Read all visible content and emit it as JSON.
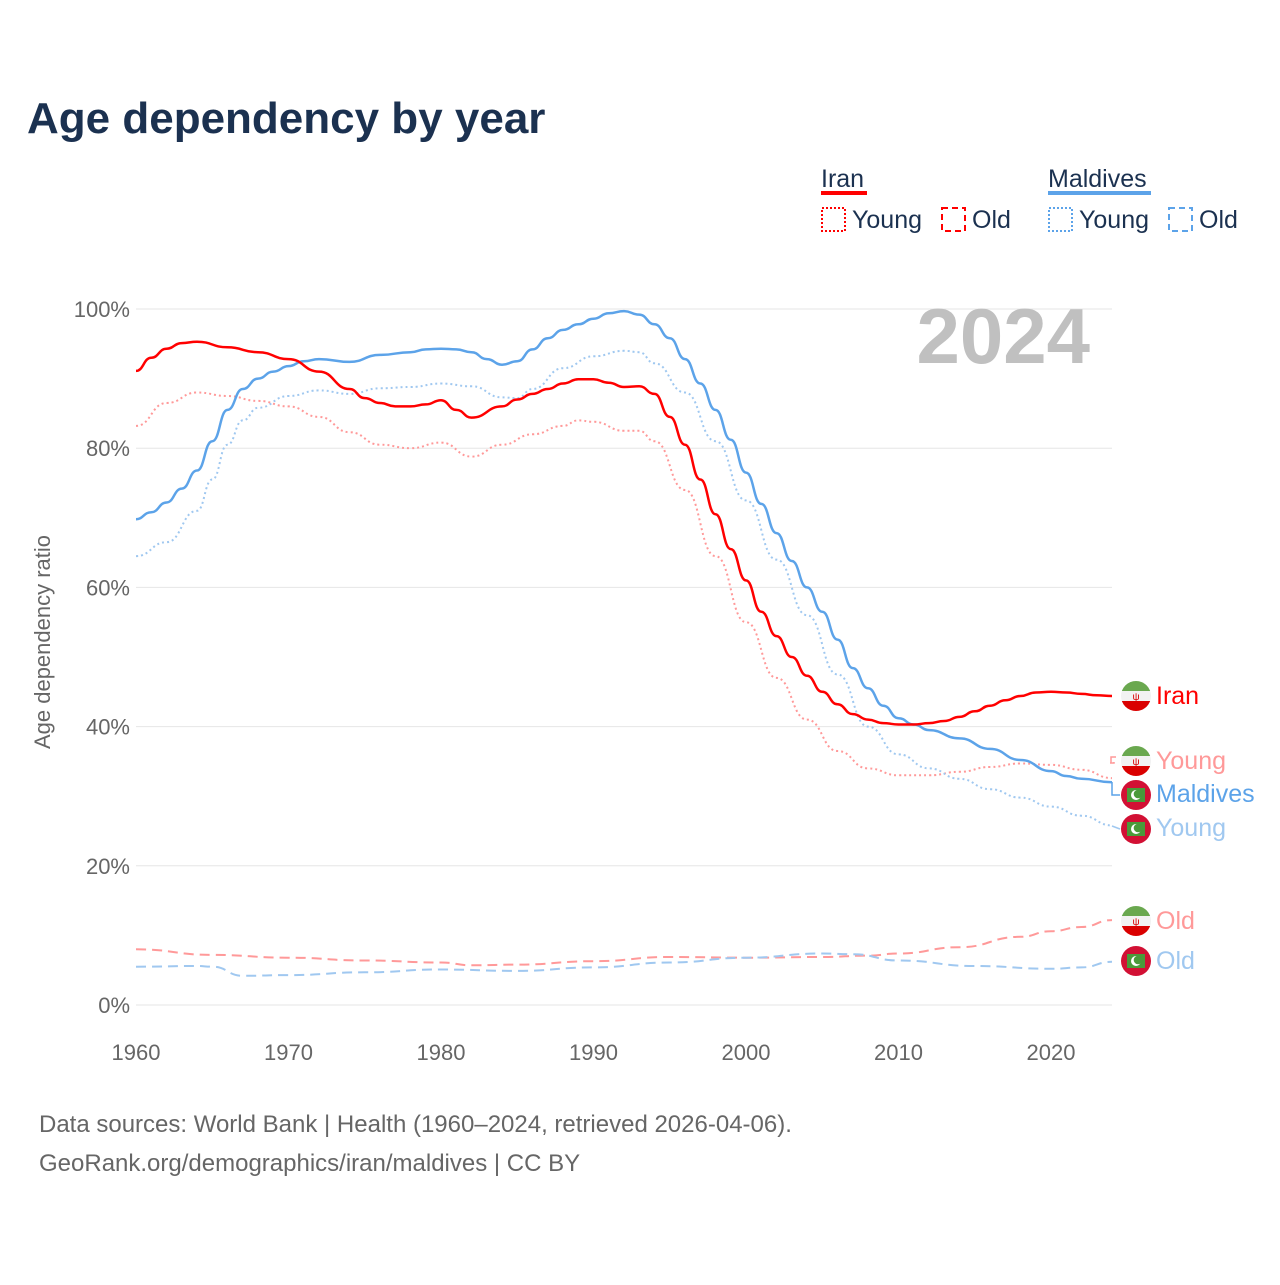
{
  "title": "Age dependency by year",
  "year_watermark": "2024",
  "legend": {
    "groups": [
      {
        "name": "Iran",
        "color": "#ff0000",
        "young": "Young",
        "old": "Old"
      },
      {
        "name": "Maldives",
        "color": "#5ca3e9",
        "young": "Young",
        "old": "Old"
      }
    ]
  },
  "end_labels": {
    "iran": "Iran",
    "iran_young": "Young",
    "maldives": "Maldives",
    "maldives_young": "Young",
    "iran_old": "Old",
    "maldives_old": "Old"
  },
  "source_line1": "Data sources: World Bank | Health (1960–2024, retrieved 2026-04-06).",
  "source_line2": "GeoRank.org/demographics/iran/maldives | CC BY",
  "chart_data": {
    "type": "line",
    "title": "Age dependency by year",
    "xlabel": "",
    "ylabel": "Age dependency ratio",
    "xlim": [
      1960,
      2024
    ],
    "ylim": [
      0,
      100
    ],
    "x_ticks": [
      "1960",
      "1970",
      "1980",
      "1990",
      "2000",
      "2010",
      "2020"
    ],
    "y_ticks": [
      "0%",
      "20%",
      "40%",
      "60%",
      "80%",
      "100%"
    ],
    "grid": true,
    "series": [
      {
        "name": "Iran",
        "style": "solid",
        "color": "#ff0000",
        "points": [
          [
            1960,
            91.1
          ],
          [
            1961,
            93
          ],
          [
            1962,
            94.3
          ],
          [
            1963,
            95.1
          ],
          [
            1964,
            95.3
          ],
          [
            1966,
            94.5
          ],
          [
            1968,
            93.8
          ],
          [
            1970,
            92.8
          ],
          [
            1972,
            91
          ],
          [
            1974,
            88.5
          ],
          [
            1975,
            87.2
          ],
          [
            1976,
            86.5
          ],
          [
            1977,
            86
          ],
          [
            1978,
            86
          ],
          [
            1979,
            86.3
          ],
          [
            1980,
            86.9
          ],
          [
            1981,
            85.5
          ],
          [
            1982,
            84.4
          ],
          [
            1984,
            86
          ],
          [
            1985,
            87
          ],
          [
            1986,
            87.8
          ],
          [
            1987,
            88.5
          ],
          [
            1988,
            89.3
          ],
          [
            1989,
            89.9
          ],
          [
            1990,
            89.9
          ],
          [
            1991,
            89.4
          ],
          [
            1992,
            88.8
          ],
          [
            1993,
            88.9
          ],
          [
            1994,
            87.8
          ],
          [
            1995,
            84.5
          ],
          [
            1996,
            80.5
          ],
          [
            1997,
            75.5
          ],
          [
            1998,
            70.5
          ],
          [
            1999,
            65.5
          ],
          [
            2000,
            61
          ],
          [
            2001,
            56.5
          ],
          [
            2002,
            53
          ],
          [
            2003,
            50
          ],
          [
            2004,
            47.3
          ],
          [
            2005,
            45
          ],
          [
            2006,
            43.2
          ],
          [
            2007,
            41.8
          ],
          [
            2008,
            41
          ],
          [
            2009,
            40.5
          ],
          [
            2010,
            40.3
          ],
          [
            2011,
            40.3
          ],
          [
            2012,
            40.5
          ],
          [
            2013,
            40.8
          ],
          [
            2014,
            41.4
          ],
          [
            2015,
            42.2
          ],
          [
            2016,
            43
          ],
          [
            2017,
            43.8
          ],
          [
            2018,
            44.4
          ],
          [
            2019,
            44.9
          ],
          [
            2020,
            45
          ],
          [
            2021,
            44.9
          ],
          [
            2022,
            44.7
          ],
          [
            2023,
            44.5
          ],
          [
            2024,
            44.4
          ]
        ]
      },
      {
        "name": "Iran Young",
        "style": "dotted",
        "color": "#ff9999",
        "points": [
          [
            1960,
            83.2
          ],
          [
            1962,
            86.5
          ],
          [
            1964,
            88
          ],
          [
            1966,
            87.5
          ],
          [
            1968,
            86.8
          ],
          [
            1970,
            86
          ],
          [
            1972,
            84.5
          ],
          [
            1974,
            82.3
          ],
          [
            1976,
            80.5
          ],
          [
            1978,
            80
          ],
          [
            1980,
            80.8
          ],
          [
            1982,
            78.8
          ],
          [
            1984,
            80.5
          ],
          [
            1986,
            82
          ],
          [
            1988,
            83.2
          ],
          [
            1989,
            84
          ],
          [
            1990,
            83.8
          ],
          [
            1992,
            82.5
          ],
          [
            1993,
            82.5
          ],
          [
            1994,
            81
          ],
          [
            1996,
            74
          ],
          [
            1998,
            64.5
          ],
          [
            2000,
            55
          ],
          [
            2002,
            47
          ],
          [
            2004,
            41
          ],
          [
            2006,
            36.5
          ],
          [
            2008,
            34
          ],
          [
            2010,
            33
          ],
          [
            2012,
            33
          ],
          [
            2014,
            33.5
          ],
          [
            2016,
            34.2
          ],
          [
            2018,
            34.7
          ],
          [
            2020,
            34.5
          ],
          [
            2022,
            33.8
          ],
          [
            2024,
            32.6
          ]
        ]
      },
      {
        "name": "Iran Old",
        "style": "dashed",
        "color": "#ff9999",
        "points": [
          [
            1960,
            8
          ],
          [
            1965,
            7.2
          ],
          [
            1970,
            6.8
          ],
          [
            1975,
            6.4
          ],
          [
            1980,
            6.1
          ],
          [
            1982,
            5.7
          ],
          [
            1985,
            5.8
          ],
          [
            1990,
            6.3
          ],
          [
            1995,
            6.9
          ],
          [
            2000,
            6.8
          ],
          [
            2005,
            6.9
          ],
          [
            2008,
            7.1
          ],
          [
            2010,
            7.4
          ],
          [
            2014,
            8.3
          ],
          [
            2018,
            9.8
          ],
          [
            2020,
            10.6
          ],
          [
            2022,
            11.2
          ],
          [
            2024,
            12.2
          ]
        ]
      },
      {
        "name": "Maldives",
        "style": "solid",
        "color": "#5ca3e9",
        "points": [
          [
            1960,
            69.8
          ],
          [
            1961,
            70.8
          ],
          [
            1962,
            72.2
          ],
          [
            1963,
            74.2
          ],
          [
            1964,
            76.8
          ],
          [
            1965,
            81
          ],
          [
            1966,
            85.5
          ],
          [
            1967,
            88.5
          ],
          [
            1968,
            90
          ],
          [
            1969,
            91
          ],
          [
            1970,
            91.8
          ],
          [
            1971,
            92.5
          ],
          [
            1972,
            92.8
          ],
          [
            1974,
            92.4
          ],
          [
            1976,
            93.4
          ],
          [
            1978,
            93.8
          ],
          [
            1979,
            94.2
          ],
          [
            1980,
            94.3
          ],
          [
            1981,
            94.2
          ],
          [
            1982,
            93.8
          ],
          [
            1983,
            92.8
          ],
          [
            1984,
            92
          ],
          [
            1985,
            92.5
          ],
          [
            1986,
            94.2
          ],
          [
            1987,
            95.8
          ],
          [
            1988,
            97
          ],
          [
            1989,
            97.8
          ],
          [
            1990,
            98.6
          ],
          [
            1991,
            99.4
          ],
          [
            1992,
            99.7
          ],
          [
            1993,
            99.2
          ],
          [
            1994,
            97.8
          ],
          [
            1995,
            95.8
          ],
          [
            1996,
            92.8
          ],
          [
            1997,
            89.3
          ],
          [
            1998,
            85.5
          ],
          [
            1999,
            81.2
          ],
          [
            2000,
            76.5
          ],
          [
            2001,
            72
          ],
          [
            2002,
            67.8
          ],
          [
            2003,
            63.8
          ],
          [
            2004,
            60
          ],
          [
            2005,
            56.5
          ],
          [
            2006,
            52.5
          ],
          [
            2007,
            48.4
          ],
          [
            2008,
            45.5
          ],
          [
            2009,
            43
          ],
          [
            2010,
            41.2
          ],
          [
            2011,
            40.3
          ],
          [
            2012,
            39.5
          ],
          [
            2014,
            38.3
          ],
          [
            2016,
            36.8
          ],
          [
            2018,
            35.2
          ],
          [
            2020,
            33.6
          ],
          [
            2021,
            32.9
          ],
          [
            2022,
            32.5
          ],
          [
            2024,
            32
          ]
        ]
      },
      {
        "name": "Maldives Young",
        "style": "dotted",
        "color": "#a0c8f0",
        "points": [
          [
            1960,
            64.5
          ],
          [
            1962,
            66.5
          ],
          [
            1964,
            71
          ],
          [
            1965,
            75.5
          ],
          [
            1966,
            80.5
          ],
          [
            1967,
            84
          ],
          [
            1968,
            85.8
          ],
          [
            1970,
            87.5
          ],
          [
            1972,
            88.3
          ],
          [
            1974,
            87.8
          ],
          [
            1976,
            88.6
          ],
          [
            1978,
            88.8
          ],
          [
            1980,
            89.3
          ],
          [
            1982,
            88.9
          ],
          [
            1984,
            87.3
          ],
          [
            1985,
            87.2
          ],
          [
            1986,
            88.5
          ],
          [
            1988,
            91.5
          ],
          [
            1990,
            93.2
          ],
          [
            1992,
            94
          ],
          [
            1993,
            93.8
          ],
          [
            1994,
            92.2
          ],
          [
            1996,
            88
          ],
          [
            1998,
            81
          ],
          [
            2000,
            72.5
          ],
          [
            2002,
            64
          ],
          [
            2004,
            56
          ],
          [
            2006,
            47.5
          ],
          [
            2008,
            40
          ],
          [
            2010,
            36
          ],
          [
            2012,
            34
          ],
          [
            2014,
            32.5
          ],
          [
            2016,
            31
          ],
          [
            2018,
            29.8
          ],
          [
            2020,
            28.5
          ],
          [
            2022,
            27.2
          ],
          [
            2024,
            25.8
          ]
        ]
      },
      {
        "name": "Maldives Old",
        "style": "dashed",
        "color": "#a0c8f0",
        "points": [
          [
            1960,
            5.5
          ],
          [
            1964,
            5.6
          ],
          [
            1965,
            5.5
          ],
          [
            1967,
            4.2
          ],
          [
            1970,
            4.3
          ],
          [
            1975,
            4.7
          ],
          [
            1980,
            5.1
          ],
          [
            1985,
            4.9
          ],
          [
            1990,
            5.4
          ],
          [
            1995,
            6.1
          ],
          [
            2000,
            6.8
          ],
          [
            2005,
            7.4
          ],
          [
            2007,
            7.3
          ],
          [
            2010,
            6.4
          ],
          [
            2015,
            5.6
          ],
          [
            2020,
            5.2
          ],
          [
            2022,
            5.4
          ],
          [
            2024,
            6.2
          ]
        ]
      }
    ]
  }
}
